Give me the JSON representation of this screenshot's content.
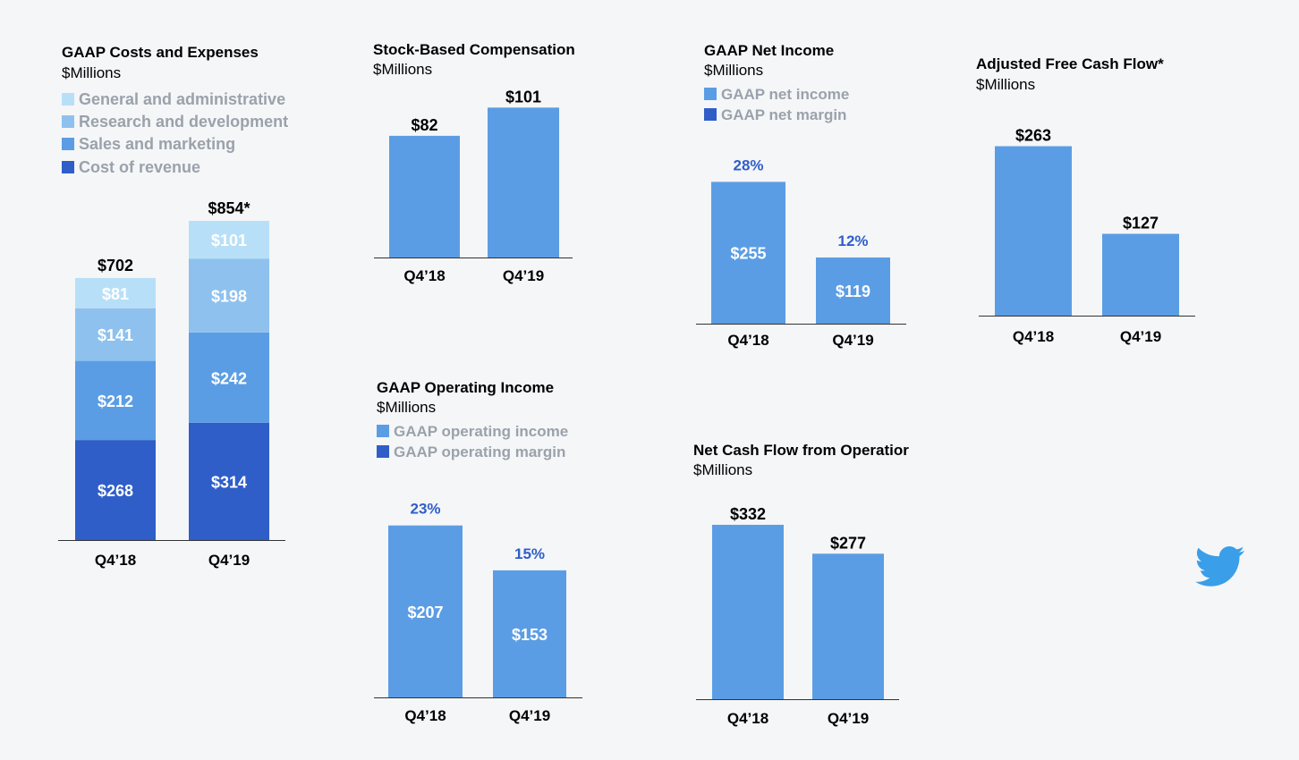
{
  "colors": {
    "bar": "#5b9de4",
    "cost_of_revenue": "#2f5ec9",
    "sales_marketing": "#5b9de4",
    "research_development": "#8ec1ee",
    "general_admin": "#b7e0f8",
    "margin_text": "#2f5ec9",
    "twitter": "#3a9ee8"
  },
  "icons": {
    "logo": "twitter-bird-icon"
  },
  "costs_panel": {
    "title": "GAAP Costs and Expenses",
    "subtitle": "$Millions",
    "legend": [
      {
        "label": "General and administrative",
        "color": "#b7e0f8"
      },
      {
        "label": "Research and development",
        "color": "#8ec1ee"
      },
      {
        "label": "Sales and marketing",
        "color": "#5b9de4"
      },
      {
        "label": "Cost of revenue",
        "color": "#2f5ec9"
      }
    ]
  },
  "sbc_panel": {
    "title": "Stock-Based Compensation",
    "subtitle": "$Millions"
  },
  "net_income_panel": {
    "title": "GAAP Net Income",
    "subtitle": "$Millions",
    "legend": [
      {
        "label": "GAAP net income",
        "color": "#5b9de4"
      },
      {
        "label": "GAAP net margin",
        "color": "#2f5ec9"
      }
    ]
  },
  "afcf_panel": {
    "title": "Adjusted Free Cash Flow*",
    "subtitle": "$Millions"
  },
  "op_income_panel": {
    "title": "GAAP Operating Income",
    "subtitle": "$Millions",
    "legend": [
      {
        "label": "GAAP operating income",
        "color": "#5b9de4"
      },
      {
        "label": "GAAP operating margin",
        "color": "#2f5ec9"
      }
    ]
  },
  "ncf_panel": {
    "title": "Net Cash Flow from Operatior",
    "subtitle": "$Millions"
  },
  "chart_data": [
    {
      "type": "bar",
      "stacked": true,
      "id": "costs",
      "title": "GAAP Costs and Expenses",
      "ylabel": "$Millions",
      "categories": [
        "Q4’18",
        "Q4’19"
      ],
      "series": [
        {
          "name": "Cost of revenue",
          "values": [
            268,
            314
          ],
          "labels": [
            "$268",
            "$314"
          ]
        },
        {
          "name": "Sales and marketing",
          "values": [
            212,
            242
          ],
          "labels": [
            "$212",
            "$242"
          ]
        },
        {
          "name": "Research and development",
          "values": [
            141,
            198
          ],
          "labels": [
            "$141",
            "$198"
          ]
        },
        {
          "name": "General and administrative",
          "values": [
            81,
            101
          ],
          "labels": [
            "$81",
            "$101"
          ]
        }
      ],
      "totals": [
        702,
        854
      ],
      "total_labels": [
        "$702",
        "$854*"
      ]
    },
    {
      "type": "bar",
      "id": "sbc",
      "title": "Stock-Based Compensation",
      "ylabel": "$Millions",
      "categories": [
        "Q4’18",
        "Q4’19"
      ],
      "values": [
        82,
        101
      ],
      "labels": [
        "$82",
        "$101"
      ]
    },
    {
      "type": "bar",
      "id": "net_income",
      "title": "GAAP Net Income",
      "ylabel": "$Millions",
      "categories": [
        "Q4’18",
        "Q4’19"
      ],
      "values": [
        255,
        119
      ],
      "labels": [
        "$255",
        "$119"
      ],
      "margins": [
        28,
        12
      ],
      "margin_labels": [
        "28%",
        "12%"
      ]
    },
    {
      "type": "bar",
      "id": "afcf",
      "title": "Adjusted Free Cash Flow*",
      "ylabel": "$Millions",
      "categories": [
        "Q4’18",
        "Q4’19"
      ],
      "values": [
        263,
        127
      ],
      "labels": [
        "$263",
        "$127"
      ]
    },
    {
      "type": "bar",
      "id": "op_income",
      "title": "GAAP Operating Income",
      "ylabel": "$Millions",
      "categories": [
        "Q4’18",
        "Q4’19"
      ],
      "values": [
        207,
        153
      ],
      "labels": [
        "$207",
        "$153"
      ],
      "margins": [
        23,
        15
      ],
      "margin_labels": [
        "23%",
        "15%"
      ]
    },
    {
      "type": "bar",
      "id": "ncf",
      "title": "Net Cash Flow from Operatior",
      "ylabel": "$Millions",
      "categories": [
        "Q4’18",
        "Q4’19"
      ],
      "values": [
        332,
        277
      ],
      "labels": [
        "$332",
        "$277"
      ]
    }
  ]
}
